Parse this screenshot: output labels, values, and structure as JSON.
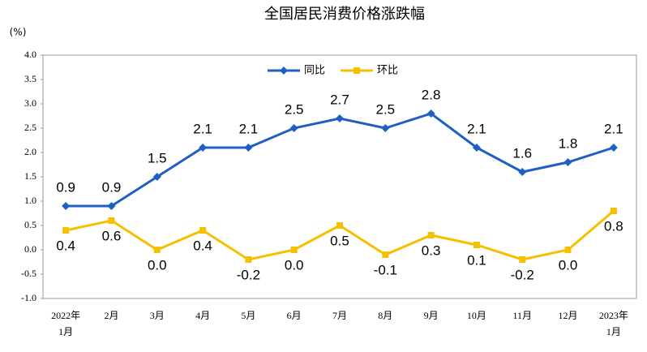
{
  "chart_data": {
    "type": "line",
    "title": "全国居民消费价格涨跌幅",
    "y_unit": "(%)",
    "categories": [
      "2022年\n1月",
      "2月",
      "3月",
      "4月",
      "5月",
      "6月",
      "7月",
      "8月",
      "9月",
      "10月",
      "11月",
      "12月",
      "2023年\n1月"
    ],
    "series": [
      {
        "name": "同比",
        "color": "#1f5fc4",
        "marker": "diamond",
        "label_position": "above",
        "values": [
          0.9,
          0.9,
          1.5,
          2.1,
          2.1,
          2.5,
          2.7,
          2.5,
          2.8,
          2.1,
          1.6,
          1.8,
          2.1
        ],
        "value_labels": [
          "0.9",
          "0.9",
          "1.5",
          "2.1",
          "2.1",
          "2.5",
          "2.7",
          "2.5",
          "2.8",
          "2.1",
          "1.6",
          "1.8",
          "2.1"
        ]
      },
      {
        "name": "环比",
        "color": "#f5c000",
        "marker": "square",
        "label_position": "below",
        "values": [
          0.4,
          0.6,
          0.0,
          0.4,
          -0.2,
          0.0,
          0.5,
          -0.1,
          0.3,
          0.1,
          -0.2,
          0.0,
          0.8
        ],
        "value_labels": [
          "0.4",
          "0.6",
          "0.0",
          "0.4",
          "-0.2",
          "0.0",
          "0.5",
          "-0.1",
          "0.3",
          "0.1",
          "-0.2",
          "0.0",
          "0.8"
        ]
      }
    ],
    "ylim": [
      -1.0,
      4.0
    ],
    "yticks": [
      {
        "value": 4,
        "label": "4.0"
      },
      3.5,
      {
        "value": 3,
        "label": "3.0"
      },
      2.5,
      {
        "value": 2,
        "label": "2.0"
      },
      1.5,
      {
        "value": 1,
        "label": "1.0"
      },
      0.5,
      {
        "value": 0,
        "label": "0.0"
      },
      -0.5,
      {
        "value": -1,
        "label": "-1.0"
      }
    ],
    "grid": false,
    "legend": "top"
  }
}
